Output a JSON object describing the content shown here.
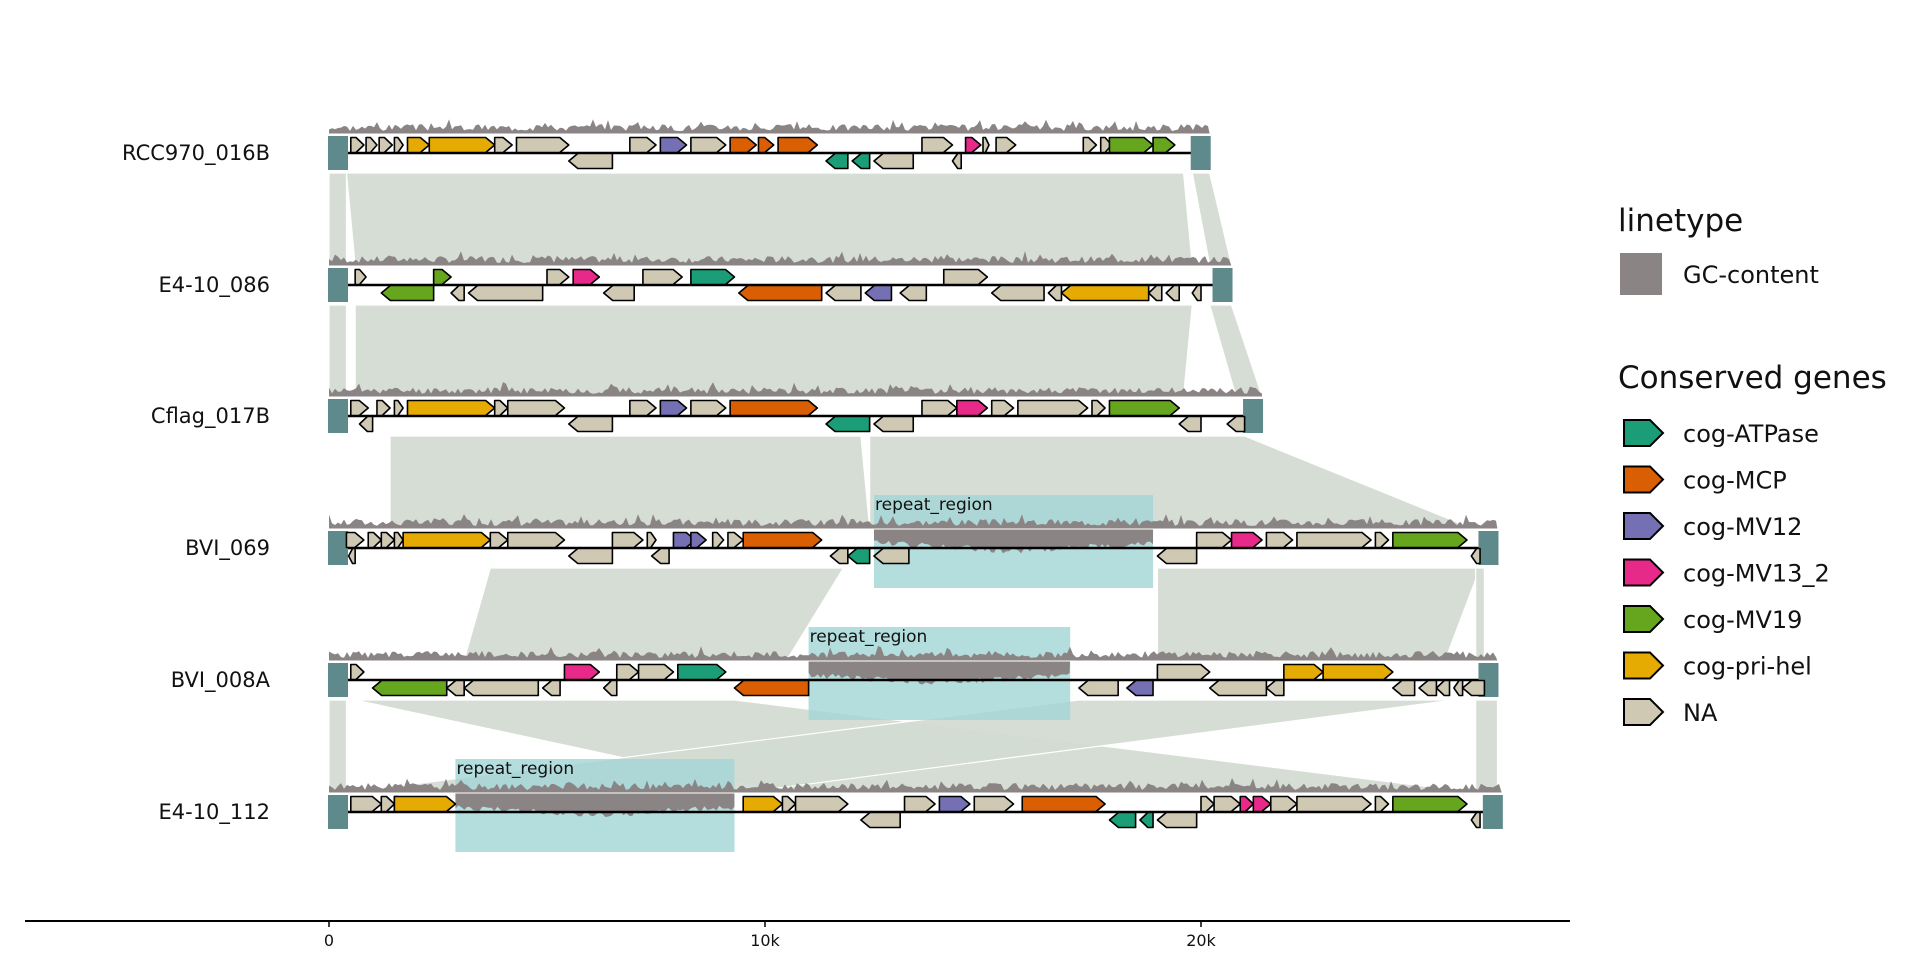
{
  "colors": {
    "cog-ATPase": "#1b9e77",
    "cog-MCP": "#d95f02",
    "cog-MV12": "#7570b3",
    "cog-MV13_2": "#e7298a",
    "cog-MV19": "#66a61e",
    "cog-pri-hel": "#e6ab02",
    "NA": "#cfc9b4",
    "gc": "#8b8485",
    "link": "#d3dbd2",
    "repeat": "#a4d6d7",
    "contig_end": "#5f8a8b"
  },
  "axis": {
    "min": -7000,
    "max": 28500,
    "ticks": [
      0,
      10000,
      20000
    ],
    "tick_labels": [
      "0",
      "10k",
      "20k"
    ]
  },
  "contigs": [
    {
      "name": "RCC970_016B",
      "length": 20200,
      "gc_seed": 3,
      "genes": [
        {
          "s": 500,
          "e": 800,
          "st": 1,
          "c": "NA"
        },
        {
          "s": 850,
          "e": 1100,
          "st": 1,
          "c": "NA"
        },
        {
          "s": 1150,
          "e": 1450,
          "st": 1,
          "c": "NA"
        },
        {
          "s": 1500,
          "e": 1700,
          "st": 1,
          "c": "NA"
        },
        {
          "s": 1800,
          "e": 2300,
          "st": 1,
          "c": "cog-pri-hel"
        },
        {
          "s": 2300,
          "e": 3800,
          "st": 1,
          "c": "cog-pri-hel"
        },
        {
          "s": 3800,
          "e": 4200,
          "st": 1,
          "c": "NA"
        },
        {
          "s": 4300,
          "e": 5500,
          "st": 1,
          "c": "NA"
        },
        {
          "s": 5500,
          "e": 6500,
          "st": -1,
          "c": "NA"
        },
        {
          "s": 6900,
          "e": 7500,
          "st": 1,
          "c": "NA"
        },
        {
          "s": 7600,
          "e": 8200,
          "st": 1,
          "c": "cog-MV12"
        },
        {
          "s": 8300,
          "e": 9100,
          "st": 1,
          "c": "NA"
        },
        {
          "s": 9200,
          "e": 9800,
          "st": 1,
          "c": "cog-MCP"
        },
        {
          "s": 9850,
          "e": 10200,
          "st": 1,
          "c": "cog-MCP"
        },
        {
          "s": 10300,
          "e": 11200,
          "st": 1,
          "c": "cog-MCP"
        },
        {
          "s": 11400,
          "e": 11900,
          "st": -1,
          "c": "cog-ATPase"
        },
        {
          "s": 12000,
          "e": 12400,
          "st": -1,
          "c": "cog-ATPase"
        },
        {
          "s": 12500,
          "e": 13400,
          "st": -1,
          "c": "NA"
        },
        {
          "s": 13600,
          "e": 14300,
          "st": 1,
          "c": "NA"
        },
        {
          "s": 14300,
          "e": 14500,
          "st": -1,
          "c": "NA"
        },
        {
          "s": 14600,
          "e": 14950,
          "st": 1,
          "c": "cog-MV13_2"
        },
        {
          "s": 15000,
          "e": 15100,
          "st": 1,
          "c": "NA"
        },
        {
          "s": 15300,
          "e": 15750,
          "st": 1,
          "c": "NA"
        },
        {
          "s": 17300,
          "e": 17600,
          "st": 1,
          "c": "NA"
        },
        {
          "s": 17700,
          "e": 17950,
          "st": 1,
          "c": "NA"
        },
        {
          "s": 17900,
          "e": 18900,
          "st": 1,
          "c": "cog-MV19"
        },
        {
          "s": 18900,
          "e": 19400,
          "st": 1,
          "c": "cog-MV19"
        }
      ],
      "repeats": []
    },
    {
      "name": "E4-10_086",
      "length": 20700,
      "gc_seed": 7,
      "genes": [
        {
          "s": 600,
          "e": 850,
          "st": 1,
          "c": "NA"
        },
        {
          "s": 1200,
          "e": 2400,
          "st": -1,
          "c": "cog-MV19"
        },
        {
          "s": 2400,
          "e": 2800,
          "st": 1,
          "c": "cog-MV19"
        },
        {
          "s": 2800,
          "e": 3100,
          "st": -1,
          "c": "NA"
        },
        {
          "s": 3200,
          "e": 4900,
          "st": -1,
          "c": "NA"
        },
        {
          "s": 5000,
          "e": 5500,
          "st": 1,
          "c": "NA"
        },
        {
          "s": 5600,
          "e": 6200,
          "st": 1,
          "c": "cog-MV13_2"
        },
        {
          "s": 6300,
          "e": 7000,
          "st": -1,
          "c": "NA"
        },
        {
          "s": 7200,
          "e": 8100,
          "st": 1,
          "c": "NA"
        },
        {
          "s": 8300,
          "e": 9300,
          "st": 1,
          "c": "cog-ATPase"
        },
        {
          "s": 9400,
          "e": 11300,
          "st": -1,
          "c": "cog-MCP"
        },
        {
          "s": 11400,
          "e": 12200,
          "st": -1,
          "c": "NA"
        },
        {
          "s": 12300,
          "e": 12900,
          "st": -1,
          "c": "cog-MV12"
        },
        {
          "s": 13100,
          "e": 13700,
          "st": -1,
          "c": "NA"
        },
        {
          "s": 14100,
          "e": 15100,
          "st": 1,
          "c": "NA"
        },
        {
          "s": 15200,
          "e": 16400,
          "st": -1,
          "c": "NA"
        },
        {
          "s": 16500,
          "e": 16800,
          "st": -1,
          "c": "NA"
        },
        {
          "s": 16800,
          "e": 18800,
          "st": -1,
          "c": "cog-pri-hel"
        },
        {
          "s": 18800,
          "e": 19100,
          "st": -1,
          "c": "NA"
        },
        {
          "s": 19200,
          "e": 19500,
          "st": -1,
          "c": "NA"
        },
        {
          "s": 19800,
          "e": 20000,
          "st": -1,
          "c": "NA"
        }
      ],
      "repeats": []
    },
    {
      "name": "Cflag_017B",
      "length": 21400,
      "gc_seed": 11,
      "genes": [
        {
          "s": 500,
          "e": 900,
          "st": 1,
          "c": "NA"
        },
        {
          "s": 700,
          "e": 1000,
          "st": -1,
          "c": "NA"
        },
        {
          "s": 1100,
          "e": 1400,
          "st": 1,
          "c": "NA"
        },
        {
          "s": 1500,
          "e": 1700,
          "st": 1,
          "c": "NA"
        },
        {
          "s": 1800,
          "e": 3800,
          "st": 1,
          "c": "cog-pri-hel"
        },
        {
          "s": 3800,
          "e": 4100,
          "st": 1,
          "c": "NA"
        },
        {
          "s": 4100,
          "e": 5400,
          "st": 1,
          "c": "NA"
        },
        {
          "s": 5500,
          "e": 6500,
          "st": -1,
          "c": "NA"
        },
        {
          "s": 6900,
          "e": 7500,
          "st": 1,
          "c": "NA"
        },
        {
          "s": 7600,
          "e": 8200,
          "st": 1,
          "c": "cog-MV12"
        },
        {
          "s": 8300,
          "e": 9100,
          "st": 1,
          "c": "NA"
        },
        {
          "s": 9200,
          "e": 11200,
          "st": 1,
          "c": "cog-MCP"
        },
        {
          "s": 11400,
          "e": 12400,
          "st": -1,
          "c": "cog-ATPase"
        },
        {
          "s": 12500,
          "e": 13400,
          "st": -1,
          "c": "NA"
        },
        {
          "s": 13600,
          "e": 14400,
          "st": 1,
          "c": "NA"
        },
        {
          "s": 14400,
          "e": 15100,
          "st": 1,
          "c": "cog-MV13_2"
        },
        {
          "s": 15200,
          "e": 15700,
          "st": 1,
          "c": "NA"
        },
        {
          "s": 15800,
          "e": 17400,
          "st": 1,
          "c": "NA"
        },
        {
          "s": 17500,
          "e": 17800,
          "st": 1,
          "c": "NA"
        },
        {
          "s": 17900,
          "e": 19500,
          "st": 1,
          "c": "cog-MV19"
        },
        {
          "s": 19500,
          "e": 20000,
          "st": -1,
          "c": "NA"
        },
        {
          "s": 20600,
          "e": 21000,
          "st": -1,
          "c": "NA"
        }
      ],
      "repeats": []
    },
    {
      "name": "BVI_069",
      "length": 26800,
      "gc_seed": 17,
      "genes": [
        {
          "s": 400,
          "e": 800,
          "st": 1,
          "c": "NA"
        },
        {
          "s": 450,
          "e": 600,
          "st": -1,
          "c": "NA"
        },
        {
          "s": 900,
          "e": 1200,
          "st": 1,
          "c": "NA"
        },
        {
          "s": 1200,
          "e": 1500,
          "st": 1,
          "c": "NA"
        },
        {
          "s": 1500,
          "e": 1700,
          "st": 1,
          "c": "NA"
        },
        {
          "s": 1700,
          "e": 3700,
          "st": 1,
          "c": "cog-pri-hel"
        },
        {
          "s": 3700,
          "e": 4100,
          "st": 1,
          "c": "NA"
        },
        {
          "s": 4100,
          "e": 5400,
          "st": 1,
          "c": "NA"
        },
        {
          "s": 5500,
          "e": 6500,
          "st": -1,
          "c": "NA"
        },
        {
          "s": 6500,
          "e": 7200,
          "st": 1,
          "c": "NA"
        },
        {
          "s": 7300,
          "e": 7500,
          "st": 1,
          "c": "NA"
        },
        {
          "s": 7400,
          "e": 7800,
          "st": -1,
          "c": "NA"
        },
        {
          "s": 7900,
          "e": 8400,
          "st": 1,
          "c": "cog-MV12"
        },
        {
          "s": 8300,
          "e": 8650,
          "st": 1,
          "c": "cog-MV12"
        },
        {
          "s": 8800,
          "e": 9050,
          "st": 1,
          "c": "NA"
        },
        {
          "s": 9150,
          "e": 9500,
          "st": 1,
          "c": "NA"
        },
        {
          "s": 9500,
          "e": 11300,
          "st": 1,
          "c": "cog-MCP"
        },
        {
          "s": 11500,
          "e": 11900,
          "st": -1,
          "c": "NA"
        },
        {
          "s": 11900,
          "e": 12400,
          "st": -1,
          "c": "cog-ATPase"
        },
        {
          "s": 12500,
          "e": 13300,
          "st": -1,
          "c": "NA"
        },
        {
          "s": 19000,
          "e": 19900,
          "st": -1,
          "c": "NA"
        },
        {
          "s": 19900,
          "e": 20700,
          "st": 1,
          "c": "NA"
        },
        {
          "s": 20700,
          "e": 21400,
          "st": 1,
          "c": "cog-MV13_2"
        },
        {
          "s": 21500,
          "e": 22100,
          "st": 1,
          "c": "NA"
        },
        {
          "s": 22200,
          "e": 23900,
          "st": 1,
          "c": "NA"
        },
        {
          "s": 24000,
          "e": 24300,
          "st": 1,
          "c": "NA"
        },
        {
          "s": 24400,
          "e": 26100,
          "st": 1,
          "c": "cog-MV19"
        },
        {
          "s": 26200,
          "e": 26400,
          "st": -1,
          "c": "NA"
        }
      ],
      "repeats": [
        {
          "s": 12500,
          "e": 18900,
          "label": "repeat_region"
        }
      ]
    },
    {
      "name": "BVI_008A",
      "length": 26800,
      "gc_seed": 23,
      "genes": [
        {
          "s": 500,
          "e": 800,
          "st": 1,
          "c": "NA"
        },
        {
          "s": 1000,
          "e": 2700,
          "st": -1,
          "c": "cog-MV19"
        },
        {
          "s": 2700,
          "e": 3100,
          "st": -1,
          "c": "NA"
        },
        {
          "s": 3100,
          "e": 4800,
          "st": -1,
          "c": "NA"
        },
        {
          "s": 4900,
          "e": 5300,
          "st": -1,
          "c": "NA"
        },
        {
          "s": 5400,
          "e": 6200,
          "st": 1,
          "c": "cog-MV13_2"
        },
        {
          "s": 6300,
          "e": 6600,
          "st": -1,
          "c": "NA"
        },
        {
          "s": 6600,
          "e": 7100,
          "st": 1,
          "c": "NA"
        },
        {
          "s": 7100,
          "e": 7900,
          "st": 1,
          "c": "NA"
        },
        {
          "s": 8000,
          "e": 9100,
          "st": 1,
          "c": "cog-ATPase"
        },
        {
          "s": 9300,
          "e": 11000,
          "st": -1,
          "c": "cog-MCP"
        },
        {
          "s": 17200,
          "e": 18100,
          "st": -1,
          "c": "NA"
        },
        {
          "s": 18300,
          "e": 18900,
          "st": -1,
          "c": "cog-MV12"
        },
        {
          "s": 19000,
          "e": 20200,
          "st": 1,
          "c": "NA"
        },
        {
          "s": 20200,
          "e": 21500,
          "st": -1,
          "c": "NA"
        },
        {
          "s": 21500,
          "e": 21900,
          "st": -1,
          "c": "NA"
        },
        {
          "s": 21900,
          "e": 22800,
          "st": 1,
          "c": "cog-pri-hel"
        },
        {
          "s": 22800,
          "e": 24400,
          "st": 1,
          "c": "cog-pri-hel"
        },
        {
          "s": 24400,
          "e": 24900,
          "st": -1,
          "c": "NA"
        },
        {
          "s": 25000,
          "e": 25400,
          "st": -1,
          "c": "NA"
        },
        {
          "s": 25400,
          "e": 25700,
          "st": -1,
          "c": "NA"
        },
        {
          "s": 25800,
          "e": 26000,
          "st": -1,
          "c": "NA"
        },
        {
          "s": 26000,
          "e": 26500,
          "st": -1,
          "c": "NA"
        }
      ],
      "repeats": [
        {
          "s": 11000,
          "e": 17000,
          "label": "repeat_region"
        }
      ]
    },
    {
      "name": "E4-10_112",
      "length": 26900,
      "gc_seed": 31,
      "genes": [
        {
          "s": 500,
          "e": 1200,
          "st": 1,
          "c": "NA"
        },
        {
          "s": 1200,
          "e": 1500,
          "st": 1,
          "c": "NA"
        },
        {
          "s": 1500,
          "e": 1700,
          "st": 1,
          "c": "NA"
        },
        {
          "s": 1500,
          "e": 2900,
          "st": 1,
          "c": "cog-pri-hel"
        },
        {
          "s": 9500,
          "e": 10400,
          "st": 1,
          "c": "cog-pri-hel"
        },
        {
          "s": 10400,
          "e": 10700,
          "st": 1,
          "c": "NA"
        },
        {
          "s": 10700,
          "e": 11900,
          "st": 1,
          "c": "NA"
        },
        {
          "s": 12200,
          "e": 13100,
          "st": -1,
          "c": "NA"
        },
        {
          "s": 13200,
          "e": 13900,
          "st": 1,
          "c": "NA"
        },
        {
          "s": 14000,
          "e": 14700,
          "st": 1,
          "c": "cog-MV12"
        },
        {
          "s": 14800,
          "e": 15700,
          "st": 1,
          "c": "NA"
        },
        {
          "s": 15900,
          "e": 17800,
          "st": 1,
          "c": "cog-MCP"
        },
        {
          "s": 17900,
          "e": 18500,
          "st": -1,
          "c": "cog-ATPase"
        },
        {
          "s": 18600,
          "e": 18900,
          "st": -1,
          "c": "cog-ATPase"
        },
        {
          "s": 19000,
          "e": 19900,
          "st": -1,
          "c": "NA"
        },
        {
          "s": 20000,
          "e": 20300,
          "st": 1,
          "c": "NA"
        },
        {
          "s": 20300,
          "e": 20900,
          "st": 1,
          "c": "NA"
        },
        {
          "s": 20900,
          "e": 21200,
          "st": 1,
          "c": "cog-MV13_2"
        },
        {
          "s": 21200,
          "e": 21600,
          "st": 1,
          "c": "cog-MV13_2"
        },
        {
          "s": 21600,
          "e": 22200,
          "st": 1,
          "c": "NA"
        },
        {
          "s": 22200,
          "e": 23900,
          "st": 1,
          "c": "NA"
        },
        {
          "s": 24000,
          "e": 24300,
          "st": 1,
          "c": "NA"
        },
        {
          "s": 24400,
          "e": 26100,
          "st": 1,
          "c": "cog-MV19"
        },
        {
          "s": 26200,
          "e": 26400,
          "st": -1,
          "c": "NA"
        }
      ],
      "repeats": [
        {
          "s": 2900,
          "e": 9300,
          "label": "repeat_region"
        }
      ]
    }
  ],
  "links": [
    {
      "a": 0,
      "as": 0,
      "ae": 400,
      "bs": 0,
      "be": 400
    },
    {
      "a": 0,
      "as": 400,
      "ae": 19600,
      "bs": 600,
      "be": 19800
    },
    {
      "a": 0,
      "as": 19800,
      "ae": 20200,
      "bs": 20200,
      "be": 20700
    },
    {
      "a": 1,
      "as": 0,
      "ae": 400,
      "bs": 0,
      "be": 400
    },
    {
      "a": 1,
      "as": 600,
      "ae": 19800,
      "bs": 600,
      "be": 19600
    },
    {
      "a": 1,
      "as": 20200,
      "ae": 20700,
      "bs": 20800,
      "be": 21400
    },
    {
      "a": 2,
      "as": 1400,
      "ae": 12200,
      "bs": 1400,
      "be": 12400
    },
    {
      "a": 2,
      "as": 12400,
      "ae": 21000,
      "bs": 12400,
      "be": 26200
    },
    {
      "a": 3,
      "as": 3700,
      "ae": 11800,
      "bs": 3100,
      "be": 10500
    },
    {
      "a": 3,
      "as": 19000,
      "ae": 26400,
      "bs": 19000,
      "be": 25600
    },
    {
      "a": 3,
      "as": 26300,
      "ae": 26500,
      "bs": 26300,
      "be": 26500
    },
    {
      "a": 4,
      "as": 0,
      "ae": 400,
      "bs": 0,
      "be": 400
    },
    {
      "a": 4,
      "as": 600,
      "ae": 9300,
      "bs": 10400,
      "be": 26200
    },
    {
      "a": 4,
      "as": 17200,
      "ae": 25800,
      "bs": 500,
      "be": 9600
    },
    {
      "a": 4,
      "as": 26300,
      "ae": 26800,
      "bs": 26300,
      "be": 26800
    }
  ],
  "legend": {
    "linetype_title": "linetype",
    "linetype_items": [
      {
        "label": "GC-content"
      }
    ],
    "genes_title": "Conserved genes",
    "genes_items": [
      {
        "key": "cog-ATPase",
        "label": "cog-ATPase"
      },
      {
        "key": "cog-MCP",
        "label": "cog-MCP"
      },
      {
        "key": "cog-MV12",
        "label": "cog-MV12"
      },
      {
        "key": "cog-MV13_2",
        "label": "cog-MV13_2"
      },
      {
        "key": "cog-MV19",
        "label": "cog-MV19"
      },
      {
        "key": "cog-pri-hel",
        "label": "cog-pri-hel"
      },
      {
        "key": "NA",
        "label": "NA"
      }
    ]
  }
}
